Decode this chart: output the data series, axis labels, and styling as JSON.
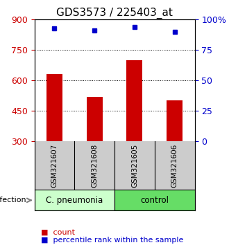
{
  "title": "GDS3573 / 225403_at",
  "samples": [
    "GSM321607",
    "GSM321608",
    "GSM321605",
    "GSM321606"
  ],
  "counts": [
    630,
    520,
    700,
    500
  ],
  "percentiles": [
    93,
    91,
    94,
    90
  ],
  "bar_color": "#cc0000",
  "dot_color": "#0000cc",
  "ylim_left": [
    300,
    900
  ],
  "ylim_right": [
    0,
    100
  ],
  "yticks_left": [
    300,
    450,
    600,
    750,
    900
  ],
  "yticks_right": [
    0,
    25,
    50,
    75,
    100
  ],
  "ytick_labels_right": [
    "0",
    "25",
    "50",
    "75",
    "100%"
  ],
  "grid_values": [
    450,
    600,
    750
  ],
  "groups": [
    {
      "label": "C. pneumonia",
      "indices": [
        0,
        1
      ],
      "color": "#ccffcc"
    },
    {
      "label": "control",
      "indices": [
        2,
        3
      ],
      "color": "#66dd66"
    }
  ],
  "infection_label": "infection",
  "legend_items": [
    {
      "color": "#cc0000",
      "label": "count"
    },
    {
      "color": "#0000cc",
      "label": "percentile rank within the sample"
    }
  ],
  "bar_width": 0.4,
  "x_positions": [
    0.5,
    1.5,
    2.5,
    3.5
  ],
  "sample_box_color": "#cccccc",
  "sample_box_border": "#000000",
  "background_color": "#ffffff",
  "plot_bg_color": "#ffffff",
  "title_fontsize": 11,
  "tick_fontsize": 9,
  "label_fontsize": 9
}
